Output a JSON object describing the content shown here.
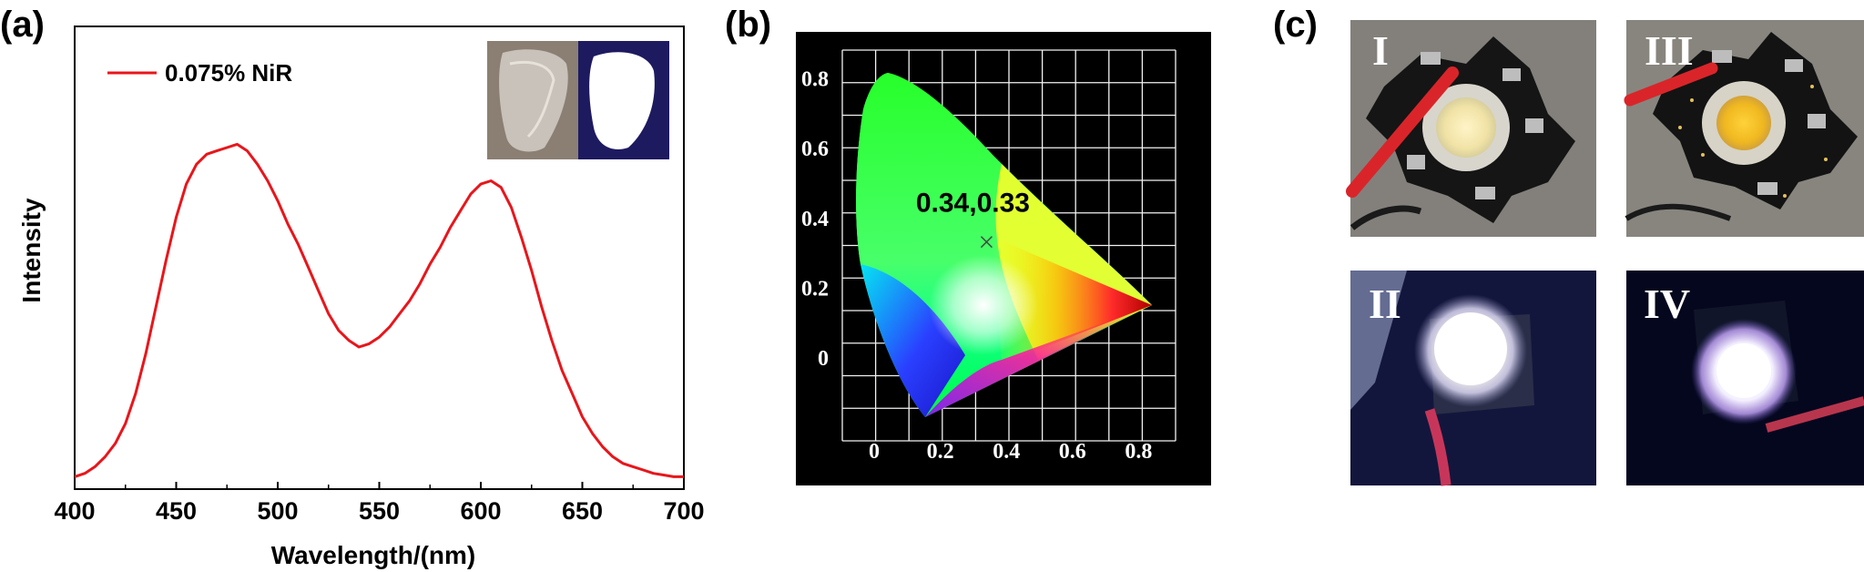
{
  "panels": {
    "a": "(a)",
    "b": "(b)",
    "c": "(c)"
  },
  "chart_data": [
    {
      "type": "line",
      "xlabel": "Wavelength/(nm)",
      "ylabel": "Intensity",
      "xlim": [
        400,
        700
      ],
      "xticks": [
        400,
        450,
        500,
        550,
        600,
        650,
        700
      ],
      "ylim": [
        0,
        1
      ],
      "legend": "top-left",
      "series": [
        {
          "name": "0.075% NiR",
          "color": "#e8161b",
          "x": [
            400,
            405,
            410,
            415,
            420,
            425,
            430,
            435,
            440,
            445,
            450,
            455,
            460,
            465,
            470,
            475,
            480,
            485,
            490,
            495,
            500,
            505,
            510,
            515,
            520,
            525,
            530,
            535,
            540,
            545,
            550,
            555,
            560,
            565,
            570,
            575,
            580,
            585,
            590,
            595,
            600,
            605,
            610,
            615,
            620,
            625,
            630,
            635,
            640,
            645,
            650,
            655,
            660,
            665,
            670,
            675,
            680,
            685,
            690,
            695,
            700
          ],
          "y": [
            0.01,
            0.02,
            0.04,
            0.07,
            0.11,
            0.17,
            0.26,
            0.38,
            0.52,
            0.66,
            0.79,
            0.89,
            0.95,
            0.98,
            0.99,
            1.0,
            1.01,
            0.99,
            0.95,
            0.9,
            0.84,
            0.77,
            0.71,
            0.64,
            0.57,
            0.5,
            0.45,
            0.42,
            0.4,
            0.41,
            0.43,
            0.46,
            0.5,
            0.54,
            0.59,
            0.65,
            0.7,
            0.76,
            0.81,
            0.86,
            0.89,
            0.9,
            0.88,
            0.82,
            0.73,
            0.63,
            0.52,
            0.42,
            0.33,
            0.26,
            0.19,
            0.14,
            0.1,
            0.07,
            0.05,
            0.04,
            0.03,
            0.02,
            0.015,
            0.01,
            0.01
          ]
        }
      ]
    },
    {
      "type": "scatter",
      "title": "",
      "xticks": [
        "0",
        "0.2",
        "0.4",
        "0.6",
        "0.8"
      ],
      "yticks": [
        "0",
        "0.2",
        "0.4",
        "0.6",
        "0.8"
      ],
      "grid": true,
      "series": [
        {
          "name": "",
          "x": [
            0.34
          ],
          "y": [
            0.33
          ],
          "label": "0.34,0.33"
        }
      ]
    }
  ],
  "photos": {
    "top_left": "I",
    "top_right": "III",
    "bottom_left": "II",
    "bottom_right": "IV"
  }
}
